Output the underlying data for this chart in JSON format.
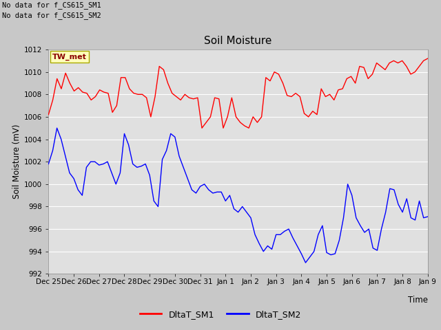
{
  "title": "Soil Moisture",
  "ylabel": "Soil Moisture (mV)",
  "xlabel": "Time",
  "ylim": [
    992,
    1012
  ],
  "fig_bg_color": "#c8c8c8",
  "plot_bg_color": "#e0e0e0",
  "grid_color": "#ffffff",
  "no_data_text1": "No data for f_CS615_SM1",
  "no_data_text2": "No data for f_CS615_SM2",
  "tw_met_label": "TW_met",
  "legend_entries": [
    "DltaT_SM1",
    "DltaT_SM2"
  ],
  "line_colors": [
    "#ff0000",
    "#0000ff"
  ],
  "sm1_data": [
    1006.2,
    1007.5,
    1009.4,
    1008.5,
    1009.9,
    1009.0,
    1008.3,
    1008.6,
    1008.2,
    1008.1,
    1007.5,
    1007.8,
    1008.4,
    1008.2,
    1008.1,
    1006.4,
    1007.0,
    1009.5,
    1009.5,
    1008.5,
    1008.1,
    1008.0,
    1008.0,
    1007.7,
    1006.0,
    1007.8,
    1010.5,
    1010.2,
    1009.0,
    1008.1,
    1007.8,
    1007.5,
    1008.0,
    1007.7,
    1007.6,
    1007.7,
    1005.0,
    1005.5,
    1006.0,
    1007.7,
    1007.6,
    1005.0,
    1006.0,
    1007.7,
    1006.0,
    1005.5,
    1005.2,
    1005.0,
    1006.0,
    1005.5,
    1006.0,
    1009.5,
    1009.2,
    1010.0,
    1009.8,
    1009.0,
    1007.9,
    1007.8,
    1008.1,
    1007.8,
    1006.3,
    1006.0,
    1006.5,
    1006.2,
    1008.5,
    1007.8,
    1008.0,
    1007.5,
    1008.4,
    1008.5,
    1009.4,
    1009.6,
    1009.0,
    1010.5,
    1010.4,
    1009.4,
    1009.8,
    1010.8,
    1010.5,
    1010.2,
    1010.8,
    1011.0,
    1010.8,
    1011.0,
    1010.5,
    1009.8,
    1010.0,
    1010.5,
    1011.0,
    1011.2
  ],
  "sm2_data": [
    1001.8,
    1003.0,
    1005.0,
    1004.0,
    1002.5,
    1001.0,
    1000.5,
    999.5,
    999.0,
    1001.5,
    1002.0,
    1002.0,
    1001.7,
    1001.8,
    1002.0,
    1001.0,
    1000.0,
    1001.0,
    1004.5,
    1003.5,
    1001.8,
    1001.5,
    1001.6,
    1001.8,
    1000.8,
    998.5,
    998.0,
    1002.2,
    1003.0,
    1004.5,
    1004.2,
    1002.5,
    1001.5,
    1000.5,
    999.5,
    999.2,
    999.8,
    1000.0,
    999.5,
    999.2,
    999.3,
    999.3,
    998.5,
    999.0,
    997.8,
    997.5,
    998.0,
    997.5,
    997.0,
    995.5,
    994.7,
    994.0,
    994.5,
    994.2,
    995.5,
    995.5,
    995.8,
    996.0,
    995.2,
    994.5,
    993.8,
    993.0,
    993.5,
    994.0,
    995.5,
    996.3,
    993.9,
    993.7,
    993.8,
    995.0,
    997.0,
    1000.0,
    999.0,
    997.0,
    996.3,
    995.7,
    996.0,
    994.3,
    994.1,
    996.0,
    997.5,
    999.6,
    999.5,
    998.2,
    997.5,
    998.7,
    997.0,
    996.8,
    998.5,
    997.0,
    997.1
  ],
  "xtick_labels": [
    "Dec 25",
    "Dec 26",
    "Dec 27",
    "Dec 28",
    "Dec 29",
    "Dec 30",
    "Dec 31",
    "Jan 1",
    "Jan 2",
    "Jan 3",
    "Jan 4",
    "Jan 5",
    "Jan 6",
    "Jan 7",
    "Jan 8",
    "Jan 9"
  ],
  "ytick_values": [
    992,
    994,
    996,
    998,
    1000,
    1002,
    1004,
    1006,
    1008,
    1010,
    1012
  ]
}
